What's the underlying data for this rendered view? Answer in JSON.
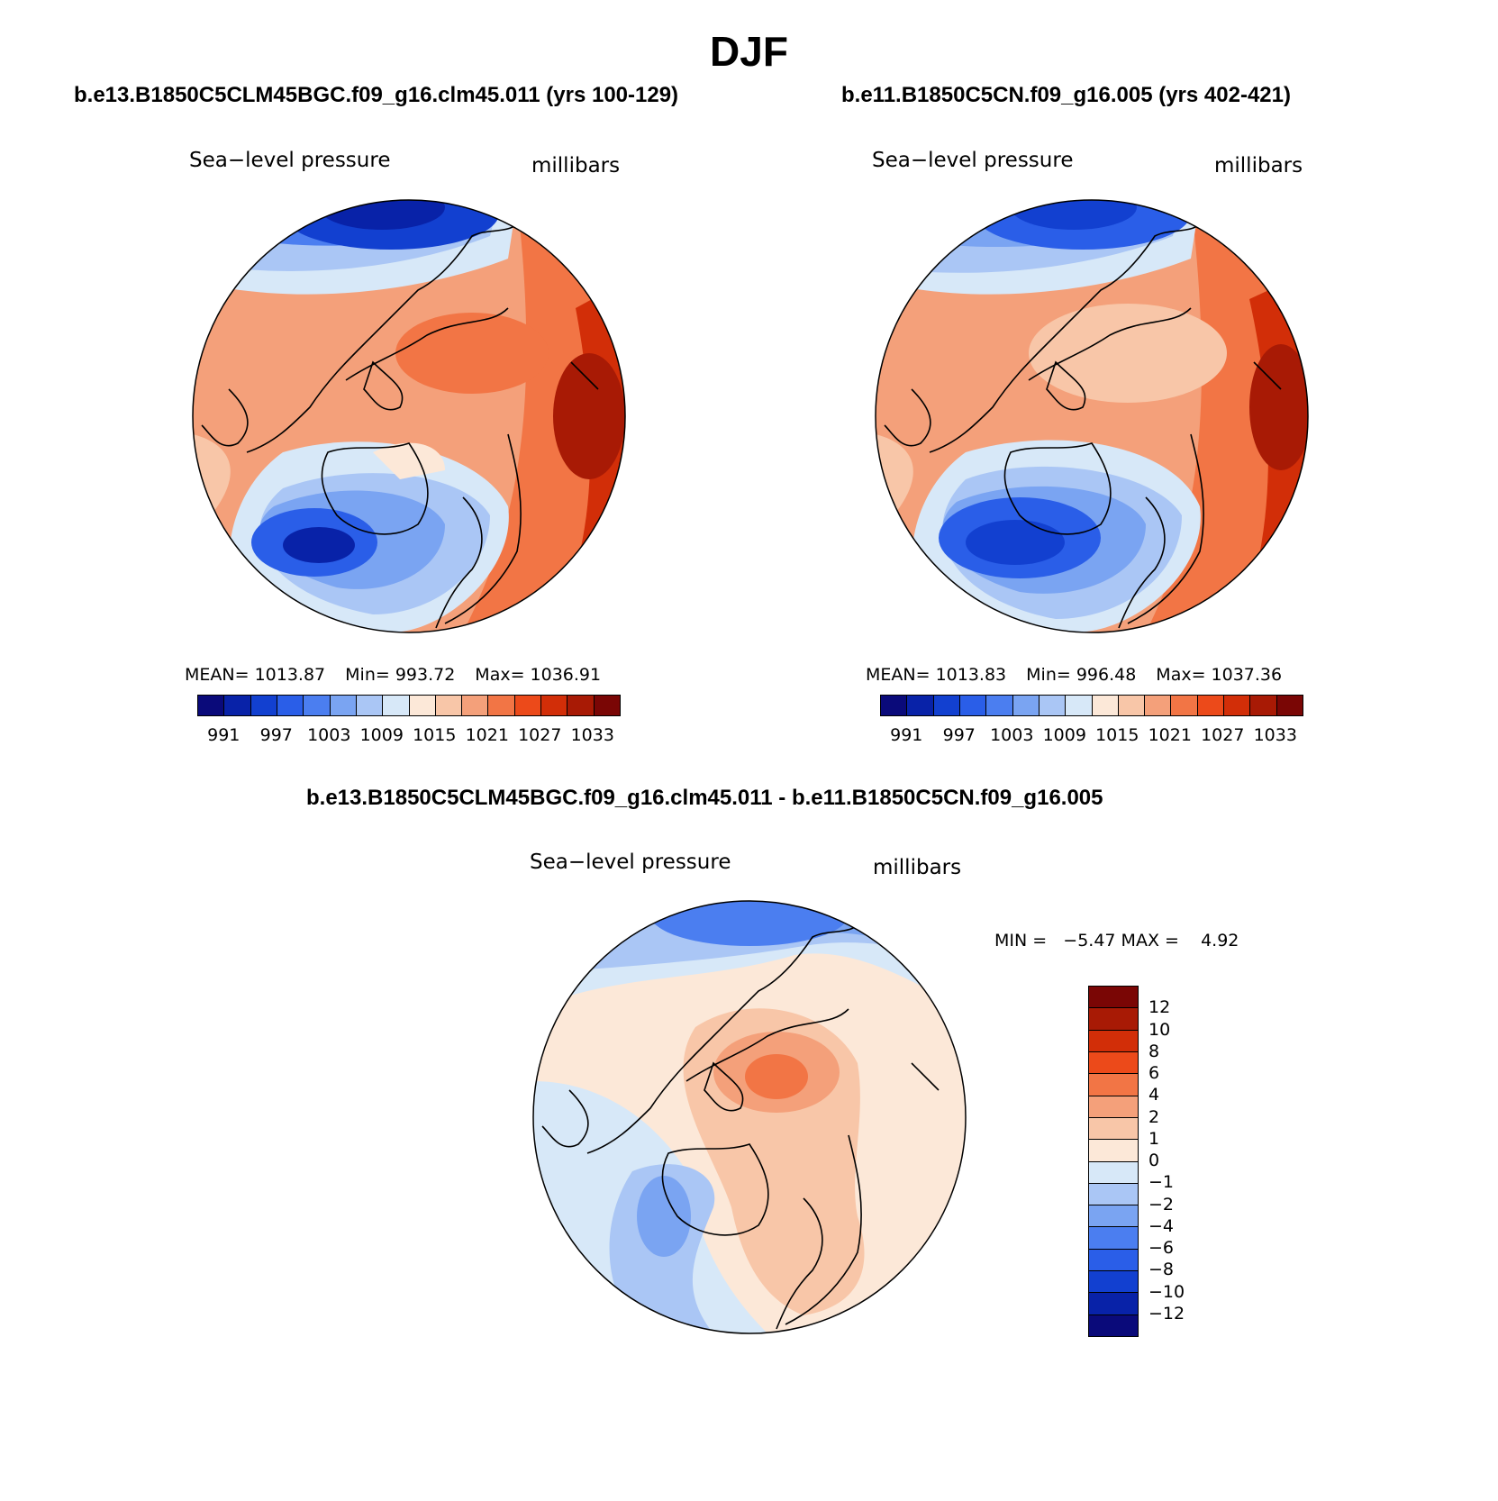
{
  "title": "DJF",
  "panels": {
    "case1": {
      "title": "b.e13.B1850C5CLM45BGC.f09_g16.clm45.011 (yrs 100-129)",
      "variable": "Sea−level pressure",
      "units": "millibars",
      "stats": {
        "mean": "MEAN= 1013.87",
        "min": "Min= 993.72",
        "max": "Max= 1036.91"
      }
    },
    "case2": {
      "title": "b.e11.B1850C5CN.f09_g16.005 (yrs 402-421)",
      "variable": "Sea−level pressure",
      "units": "millibars",
      "stats": {
        "mean": "MEAN= 1013.83",
        "min": "Min= 996.48",
        "max": "Max= 1037.36"
      }
    },
    "diff": {
      "title": "b.e13.B1850C5CLM45BGC.f09_g16.clm45.011 - b.e11.B1850C5CN.f09_g16.005",
      "variable": "Sea−level pressure",
      "units": "millibars",
      "minmax": "MIN =   −5.47 MAX =    4.92"
    }
  },
  "colorbar_abs": {
    "colors": [
      "#0a0a7a",
      "#0822a8",
      "#1240d0",
      "#2a5ee8",
      "#4b7ef0",
      "#7aa4f2",
      "#aac6f5",
      "#d7e8f8",
      "#fce8d8",
      "#f8c6a8",
      "#f4a07a",
      "#f27545",
      "#ec4a1a",
      "#d22e08",
      "#a81a05",
      "#7a0605"
    ],
    "labels": [
      "991",
      "997",
      "1003",
      "1009",
      "1015",
      "1021",
      "1027",
      "1033"
    ]
  },
  "colorbar_diff": {
    "colors": [
      "#7a0605",
      "#a81a05",
      "#d22e08",
      "#ec4a1a",
      "#f27545",
      "#f4a07a",
      "#f8c6a8",
      "#fce8d8",
      "#d7e8f8",
      "#aac6f5",
      "#7aa4f2",
      "#4b7ef0",
      "#2a5ee8",
      "#1240d0",
      "#0822a8",
      "#0a0a7a"
    ],
    "labels": [
      "12",
      "10",
      "8",
      "6",
      "4",
      "2",
      "1",
      "0",
      "−1",
      "−2",
      "−4",
      "−6",
      "−8",
      "−10",
      "−12"
    ]
  },
  "field_colors": {
    "warm_strong": "#ec4a1a",
    "warm_dark": "#d22e08",
    "warm_mid": "#f27545",
    "warm_light": "#f4a07a",
    "warm_pale": "#f8c6a8",
    "neutral_warm": "#fce8d8",
    "neutral_cool": "#d7e8f8",
    "cool_pale": "#aac6f5",
    "cool_light": "#7aa4f2",
    "cool_mid": "#4b7ef0",
    "cool_strong": "#2a5ee8",
    "cool_dark": "#1240d0",
    "cool_deep": "#0822a8"
  }
}
